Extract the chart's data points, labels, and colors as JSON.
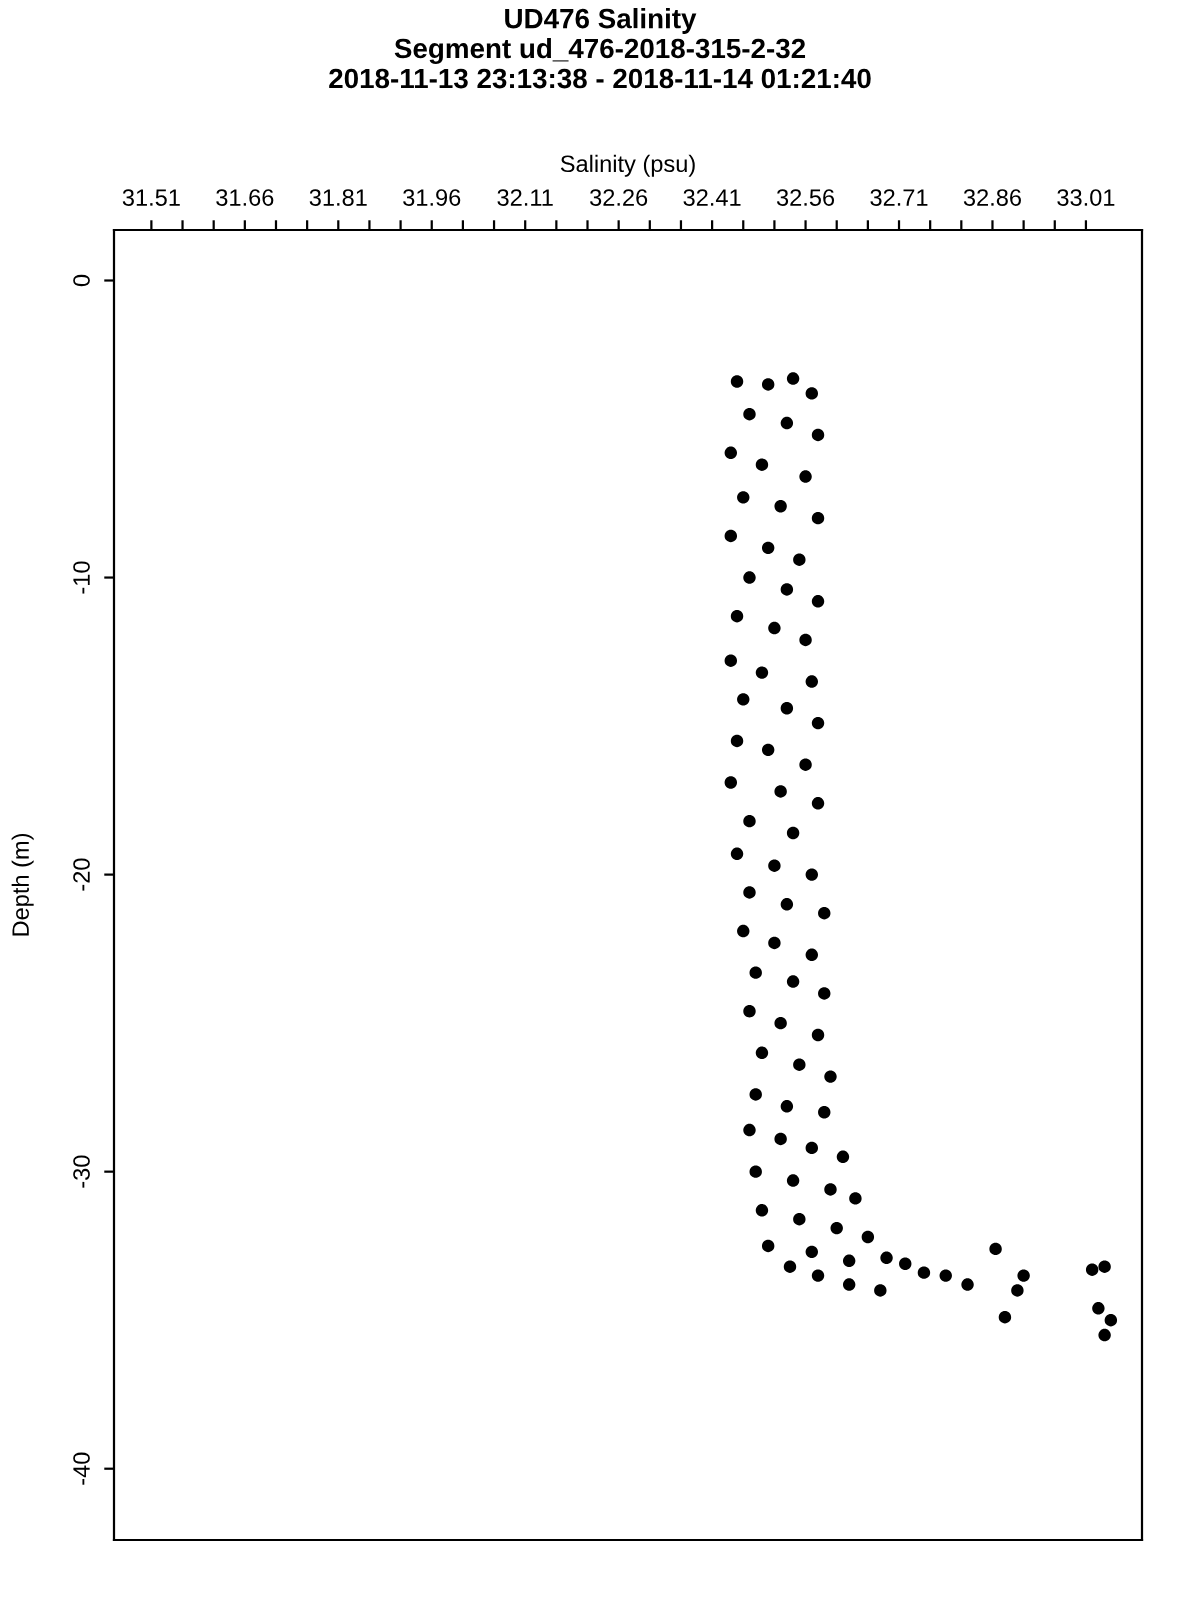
{
  "chart_data": {
    "type": "scatter",
    "title": "UD476 Salinity\nSegment ud_476-2018-315-2-32\n2018-11-13 23:13:38 - 2018-11-14 01:21:40",
    "xlabel": "Salinity (psu)",
    "ylabel": "Depth (m)",
    "marker": "circle",
    "grid": false,
    "xlim": [
      31.45,
      33.1
    ],
    "ylim": [
      -42.4,
      1.7
    ],
    "xticks": [
      31.51,
      {
        "value": 31.56,
        "label": null
      },
      {
        "value": 31.61,
        "label": null
      },
      31.66,
      {
        "value": 31.71,
        "label": null
      },
      {
        "value": 31.76,
        "label": null
      },
      31.81,
      {
        "value": 31.86,
        "label": null
      },
      {
        "value": 31.91,
        "label": null
      },
      31.96,
      {
        "value": 32.01,
        "label": null
      },
      {
        "value": 32.06,
        "label": null
      },
      32.11,
      {
        "value": 32.16,
        "label": null
      },
      {
        "value": 32.21,
        "label": null
      },
      32.26,
      {
        "value": 32.31,
        "label": null
      },
      {
        "value": 32.36,
        "label": null
      },
      32.41,
      {
        "value": 32.46,
        "label": null
      },
      {
        "value": 32.51,
        "label": null
      },
      32.56,
      {
        "value": 32.61,
        "label": null
      },
      {
        "value": 32.66,
        "label": null
      },
      32.71,
      {
        "value": 32.76,
        "label": null
      },
      {
        "value": 32.81,
        "label": null
      },
      32.86,
      {
        "value": 32.91,
        "label": null
      },
      {
        "value": 32.96,
        "label": null
      },
      33.01
    ],
    "yticks": [
      0,
      -10,
      -20,
      -30,
      -40
    ],
    "series": [
      {
        "color": "#000000",
        "x": [
          32.45,
          32.5,
          32.54,
          32.57,
          32.47,
          32.53,
          32.58,
          32.44,
          32.49,
          32.56,
          32.46,
          32.52,
          32.58,
          32.44,
          32.5,
          32.55,
          32.47,
          32.53,
          32.58,
          32.45,
          32.51,
          32.56,
          32.44,
          32.49,
          32.57,
          32.46,
          32.53,
          32.58,
          32.45,
          32.5,
          32.56,
          32.44,
          32.52,
          32.58,
          32.47,
          32.54,
          32.45,
          32.51,
          32.57,
          32.47,
          32.53,
          32.59,
          32.46,
          32.51,
          32.57,
          32.48,
          32.54,
          32.59,
          32.47,
          32.52,
          32.58,
          32.49,
          32.55,
          32.6,
          32.48,
          32.53,
          32.59,
          32.47,
          32.52,
          32.57,
          32.62,
          32.48,
          32.54,
          32.6,
          32.64,
          32.49,
          32.55,
          32.61,
          32.66,
          32.5,
          32.57,
          32.63,
          32.69,
          32.72,
          32.535,
          32.58,
          32.63,
          32.68,
          32.75,
          32.785,
          32.82,
          32.865,
          32.88,
          32.9,
          32.91,
          33.02,
          33.04,
          33.03,
          33.05,
          33.04
        ],
        "values": [
          -3.4,
          -3.5,
          -3.3,
          -3.8,
          -4.5,
          -4.8,
          -5.2,
          -5.8,
          -6.2,
          -6.6,
          -7.3,
          -7.6,
          -8.0,
          -8.6,
          -9.0,
          -9.4,
          -10.0,
          -10.4,
          -10.8,
          -11.3,
          -11.7,
          -12.1,
          -12.8,
          -13.2,
          -13.5,
          -14.1,
          -14.4,
          -14.9,
          -15.5,
          -15.8,
          -16.3,
          -16.9,
          -17.2,
          -17.6,
          -18.2,
          -18.6,
          -19.3,
          -19.7,
          -20.0,
          -20.6,
          -21.0,
          -21.3,
          -21.9,
          -22.3,
          -22.7,
          -23.3,
          -23.6,
          -24.0,
          -24.6,
          -25.0,
          -25.4,
          -26.0,
          -26.4,
          -26.8,
          -27.4,
          -27.8,
          -28.0,
          -28.6,
          -28.9,
          -29.2,
          -29.5,
          -30.0,
          -30.3,
          -30.6,
          -30.9,
          -31.3,
          -31.6,
          -31.9,
          -32.2,
          -32.5,
          -32.7,
          -33.0,
          -32.9,
          -33.1,
          -33.2,
          -33.5,
          -33.8,
          -34.0,
          -33.4,
          -33.5,
          -33.8,
          -32.6,
          -34.9,
          -34.0,
          -33.5,
          -33.3,
          -33.2,
          -34.6,
          -35.0,
          -35.5
        ]
      }
    ]
  }
}
